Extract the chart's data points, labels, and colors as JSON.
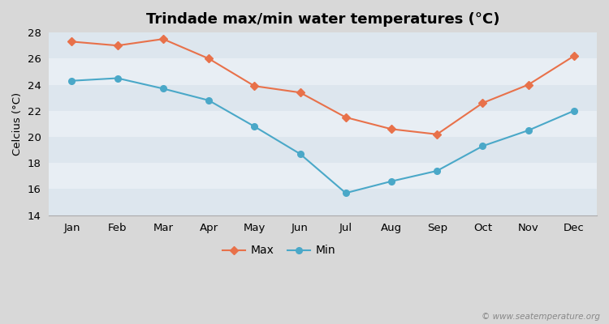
{
  "title": "Trindade max/min water temperatures (°C)",
  "ylabel": "Celcius (°C)",
  "months": [
    "Jan",
    "Feb",
    "Mar",
    "Apr",
    "May",
    "Jun",
    "Jul",
    "Aug",
    "Sep",
    "Oct",
    "Nov",
    "Dec"
  ],
  "max_temps": [
    27.3,
    27.0,
    27.5,
    26.0,
    23.9,
    23.4,
    21.5,
    20.6,
    20.2,
    22.6,
    24.0,
    26.2
  ],
  "min_temps": [
    24.3,
    24.5,
    23.7,
    22.8,
    20.8,
    18.7,
    15.7,
    16.6,
    17.4,
    19.3,
    20.5,
    22.0
  ],
  "max_color": "#e8714a",
  "min_color": "#4aa8c8",
  "fig_bg_color": "#d8d8d8",
  "band_colors": [
    "#dde6ee",
    "#e8eef4"
  ],
  "ylim": [
    14,
    28
  ],
  "yticks": [
    14,
    16,
    18,
    20,
    22,
    24,
    26,
    28
  ],
  "legend_labels": [
    "Max",
    "Min"
  ],
  "watermark": "© www.seatemperature.org",
  "title_fontsize": 13,
  "axis_fontsize": 9.5,
  "legend_fontsize": 10
}
